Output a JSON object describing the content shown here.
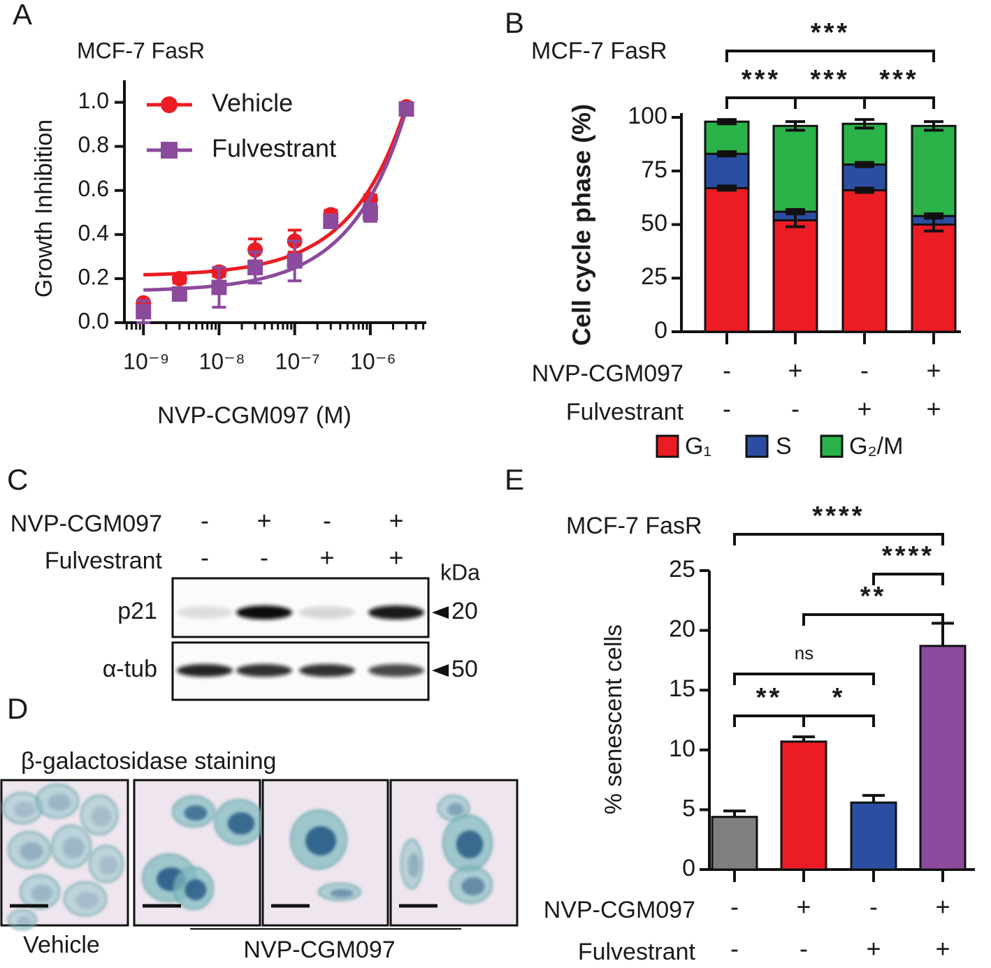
{
  "panel_labels": [
    "A",
    "B",
    "C",
    "D",
    "E"
  ],
  "chart_data": [
    {
      "type": "line",
      "title": "MCF-7 FasR",
      "x_label": "NVP-CGM097 (M)",
      "y_label": "Growth Inhibition",
      "x": [
        1e-09,
        3e-09,
        1e-08,
        3e-08,
        1e-07,
        3e-07,
        1e-06,
        3e-06
      ],
      "series": [
        {
          "name": "Vehicle",
          "color": "#ec1c24",
          "marker": "circle",
          "values": [
            0.09,
            0.2,
            0.23,
            0.33,
            0.37,
            0.49,
            0.56,
            0.98
          ],
          "errors": [
            0.01,
            0.02,
            0.02,
            0.05,
            0.05,
            0.02,
            0.02,
            0.01
          ]
        },
        {
          "name": "Fulvestrant",
          "color": "#8c4a9c",
          "marker": "square",
          "values": [
            0.05,
            0.13,
            0.16,
            0.25,
            0.28,
            0.46,
            0.5,
            0.97
          ],
          "errors": [
            0.05,
            0.02,
            0.09,
            0.07,
            0.09,
            0.02,
            0.04,
            0.01
          ]
        }
      ],
      "fit_curve": true,
      "xscale": "log",
      "xlim": [
        5.6e-10,
        5.5e-06
      ],
      "xticks": [
        {
          "value": 1e-09,
          "label": "10⁻⁹"
        },
        {
          "value": 1e-08,
          "label": "10⁻⁸"
        },
        {
          "value": 1e-07,
          "label": "10⁻⁷"
        },
        {
          "value": 1e-06,
          "label": "10⁻⁶"
        }
      ],
      "ylim": [
        0,
        1.1
      ],
      "yticks": [
        {
          "value": 0,
          "label": "0.0"
        },
        0.2,
        0.4,
        0.6,
        0.8,
        {
          "value": 1,
          "label": "1.0"
        }
      ],
      "legend": "upper left"
    },
    {
      "type": "bar",
      "stacked": true,
      "title": "MCF-7  FasR",
      "y_label": "Cell cycle phase (%)",
      "categories": [
        null,
        null,
        null,
        null
      ],
      "series": [
        {
          "name": "G₁",
          "color": "#ec1c24",
          "values": [
            67,
            52,
            66,
            50
          ],
          "errors": [
            1,
            3,
            1,
            3
          ]
        },
        {
          "name": "S",
          "color": "#2b4ea2",
          "values": [
            16,
            4,
            12,
            4
          ],
          "errors": [
            1,
            1,
            1,
            1
          ]
        },
        {
          "name": "G₂/M",
          "color": "#2bb34a",
          "values": [
            15,
            40,
            19,
            42
          ],
          "errors": [
            1,
            2,
            2,
            2
          ]
        }
      ],
      "ylim": [
        0,
        102
      ],
      "yticks": [
        0,
        25,
        50,
        75,
        100
      ],
      "treatments": [
        {
          "label": "NVP-CGM097",
          "signs": [
            "-",
            "+",
            "-",
            "+"
          ]
        },
        {
          "label": "Fulvestrant",
          "signs": [
            "-",
            "-",
            "+",
            "+"
          ]
        }
      ],
      "annotations": [
        {
          "text": "***",
          "from": 0,
          "to": 3
        },
        {
          "text": "***",
          "from": 0,
          "to": 1
        },
        {
          "text": "***",
          "from": 1,
          "to": 2
        },
        {
          "text": "***",
          "from": 2,
          "to": 3
        }
      ],
      "legend": "bottom"
    },
    {
      "type": "bar",
      "title": "MCF-7 FasR",
      "y_label": "% senescent cells",
      "categories": [
        null,
        null,
        null,
        null
      ],
      "values": [
        4.4,
        10.7,
        5.6,
        18.7
      ],
      "errors": [
        0.5,
        0.4,
        0.6,
        1.9
      ],
      "colors": [
        "#808080",
        "#ec1c24",
        "#2b4ea2",
        "#8c4a9c"
      ],
      "ylim": [
        0,
        25
      ],
      "yticks": [
        0,
        5,
        10,
        15,
        20,
        25
      ],
      "treatments": [
        {
          "label": "NVP-CGM097",
          "signs": [
            "-",
            "+",
            "-",
            "+"
          ]
        },
        {
          "label": "Fulvestrant",
          "signs": [
            "-",
            "-",
            "+",
            "+"
          ]
        }
      ],
      "annotations": [
        {
          "text": "****",
          "from": 0,
          "to": 3
        },
        {
          "text": "****",
          "from": 2,
          "to": 3
        },
        {
          "text": "**",
          "from": 1,
          "to": 3
        },
        {
          "text": "ns",
          "from": 0,
          "to": 2
        },
        {
          "text": "**",
          "from": 0,
          "to": 1
        },
        {
          "text": "*",
          "from": 1,
          "to": 2
        }
      ]
    }
  ],
  "blot": {
    "treatments": [
      {
        "label": "NVP-CGM097",
        "signs": [
          "-",
          "+",
          "-",
          "+"
        ]
      },
      {
        "label": "Fulvestrant",
        "signs": [
          "-",
          "-",
          "+",
          "+"
        ]
      }
    ],
    "unit": "kDa",
    "bands": [
      {
        "label": "p21",
        "marker": 20
      },
      {
        "label": "α-tub",
        "marker": 50
      }
    ]
  },
  "staining": {
    "title": "β-galactosidase staining",
    "groups": [
      "Vehicle",
      "NVP-CGM097"
    ]
  }
}
